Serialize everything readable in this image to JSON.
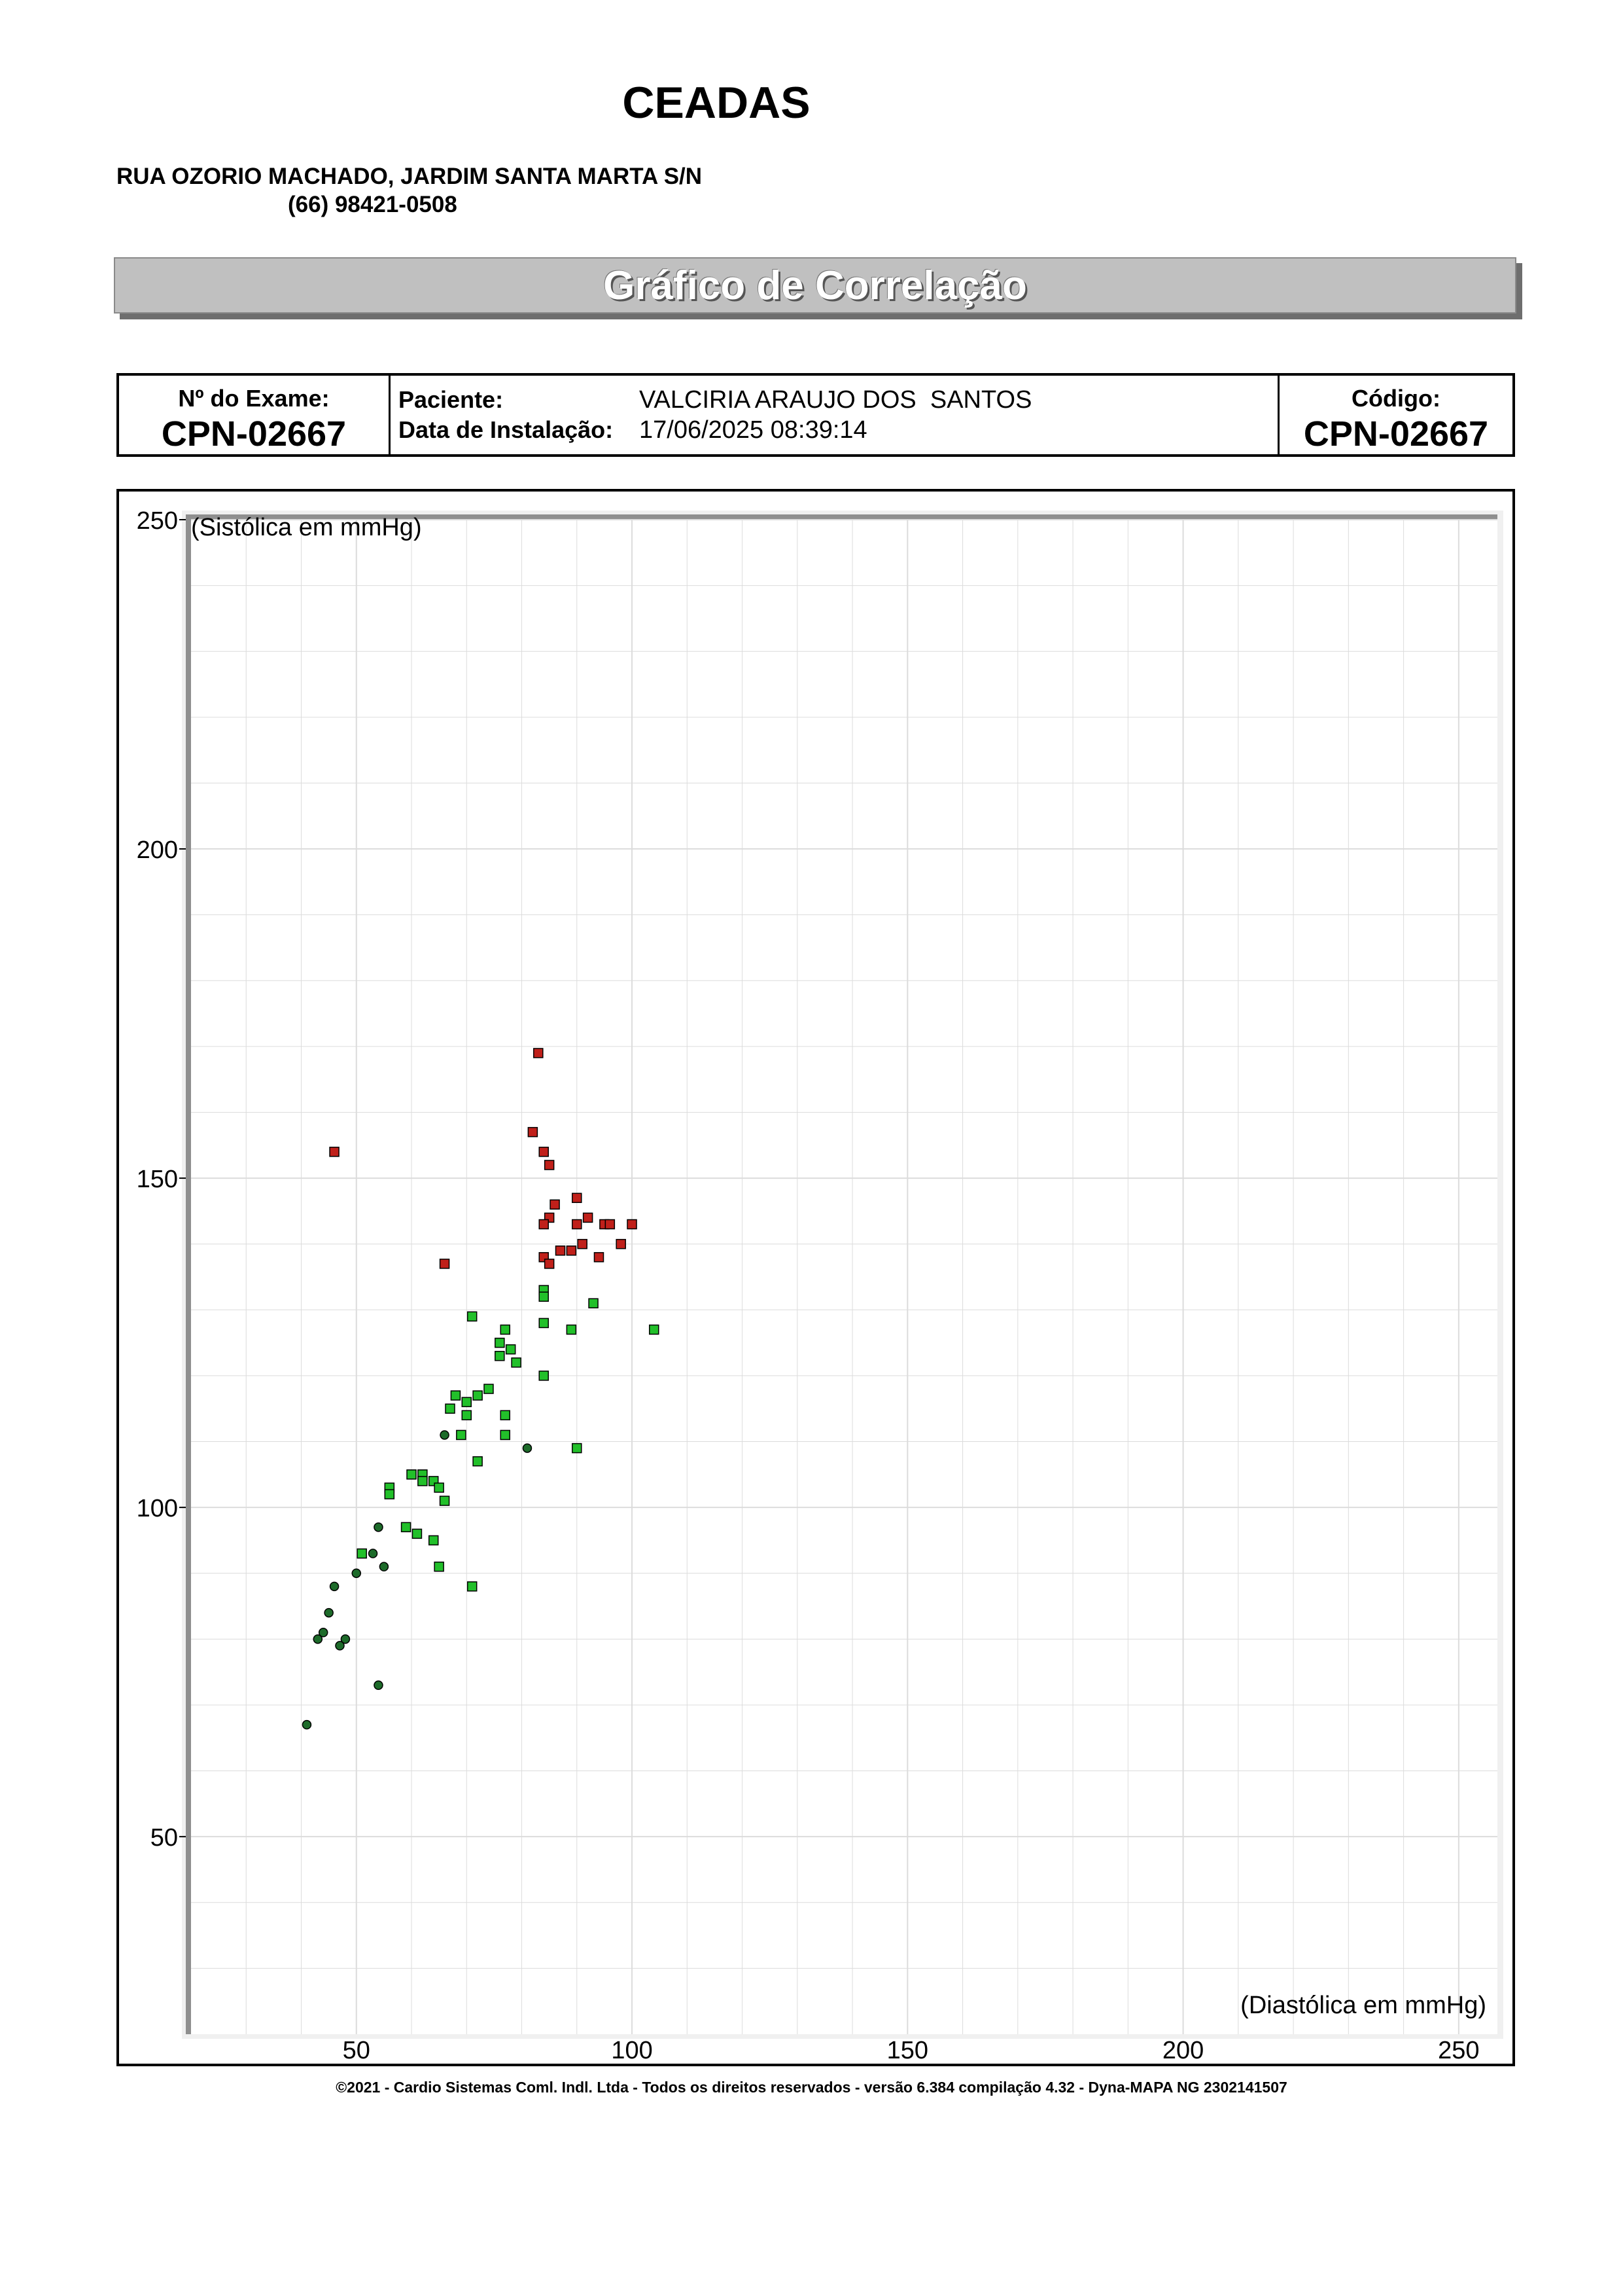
{
  "header": {
    "org_name": "CEADAS",
    "address": "RUA OZORIO MACHADO, JARDIM SANTA MARTA S/N",
    "phone": "(66) 98421-0508"
  },
  "banner": {
    "title": "Gráfico de Correlação"
  },
  "info": {
    "exam_label": "Nº do Exame:",
    "exam_value": "CPN-02667",
    "patient_label": "Paciente:",
    "patient_value": "VALCIRIA ARAUJO DOS  SANTOS",
    "install_label": "Data de Instalação:",
    "install_value": "17/06/2025 08:39:14",
    "code_label": "Código:",
    "code_value": "CPN-02667"
  },
  "footer": {
    "text": "©2021 - Cardio Sistemas Coml. Indl. Ltda - Todos os direitos reservados - versão 6.384 compilação 4.32 - Dyna-MAPA NG 2302141507"
  },
  "colors": {
    "red_marker": "#c0201a",
    "green_marker": "#22c02a",
    "dark_green_marker": "#1d6b2a",
    "grid": "#dcdcdc",
    "plot_bevel": "#9a9a9a"
  },
  "chart_data": {
    "type": "scatter",
    "title": "",
    "xlabel": "(Diastólica em mmHg)",
    "ylabel": "(Sistólica em mmHg)",
    "xlim": [
      20,
      255
    ],
    "ylim": [
      20,
      250
    ],
    "x_ticks": [
      50,
      100,
      150,
      200,
      250
    ],
    "y_ticks": [
      50,
      100,
      150,
      200,
      250
    ],
    "grid": true,
    "series": [
      {
        "marker": "square",
        "color": "#c0201a",
        "points": [
          [
            83,
            169
          ],
          [
            46,
            154
          ],
          [
            82,
            157
          ],
          [
            84,
            154
          ],
          [
            85,
            152
          ],
          [
            90,
            147
          ],
          [
            86,
            146
          ],
          [
            92,
            144
          ],
          [
            85,
            144
          ],
          [
            84,
            143
          ],
          [
            90,
            143
          ],
          [
            95,
            143
          ],
          [
            96,
            143
          ],
          [
            100,
            143
          ],
          [
            91,
            140
          ],
          [
            98,
            140
          ],
          [
            87,
            139
          ],
          [
            89,
            139
          ],
          [
            84,
            138
          ],
          [
            94,
            138
          ],
          [
            85,
            137
          ],
          [
            66,
            137
          ]
        ]
      },
      {
        "marker": "square",
        "color": "#22c02a",
        "points": [
          [
            84,
            133
          ],
          [
            84,
            132
          ],
          [
            93,
            131
          ],
          [
            71,
            129
          ],
          [
            84,
            128
          ],
          [
            77,
            127
          ],
          [
            89,
            127
          ],
          [
            104,
            127
          ],
          [
            76,
            125
          ],
          [
            78,
            124
          ],
          [
            76,
            123
          ],
          [
            79,
            122
          ],
          [
            84,
            120
          ],
          [
            74,
            118
          ],
          [
            68,
            117
          ],
          [
            72,
            117
          ],
          [
            70,
            116
          ],
          [
            67,
            115
          ],
          [
            70,
            114
          ],
          [
            77,
            114
          ],
          [
            69,
            111
          ],
          [
            77,
            111
          ],
          [
            90,
            109
          ],
          [
            72,
            107
          ],
          [
            60,
            105
          ],
          [
            62,
            105
          ],
          [
            62,
            104
          ],
          [
            64,
            104
          ],
          [
            65,
            103
          ],
          [
            56,
            103
          ],
          [
            56,
            102
          ],
          [
            66,
            101
          ],
          [
            59,
            97
          ],
          [
            61,
            96
          ],
          [
            64,
            95
          ],
          [
            51,
            93
          ],
          [
            65,
            91
          ],
          [
            71,
            88
          ]
        ]
      },
      {
        "marker": "circle",
        "color": "#1d6b2a",
        "points": [
          [
            66,
            111
          ],
          [
            81,
            109
          ],
          [
            54,
            97
          ],
          [
            53,
            93
          ],
          [
            55,
            91
          ],
          [
            50,
            90
          ],
          [
            46,
            88
          ],
          [
            45,
            84
          ],
          [
            44,
            81
          ],
          [
            43,
            80
          ],
          [
            48,
            80
          ],
          [
            47,
            79
          ],
          [
            54,
            73
          ],
          [
            41,
            67
          ]
        ]
      }
    ]
  }
}
